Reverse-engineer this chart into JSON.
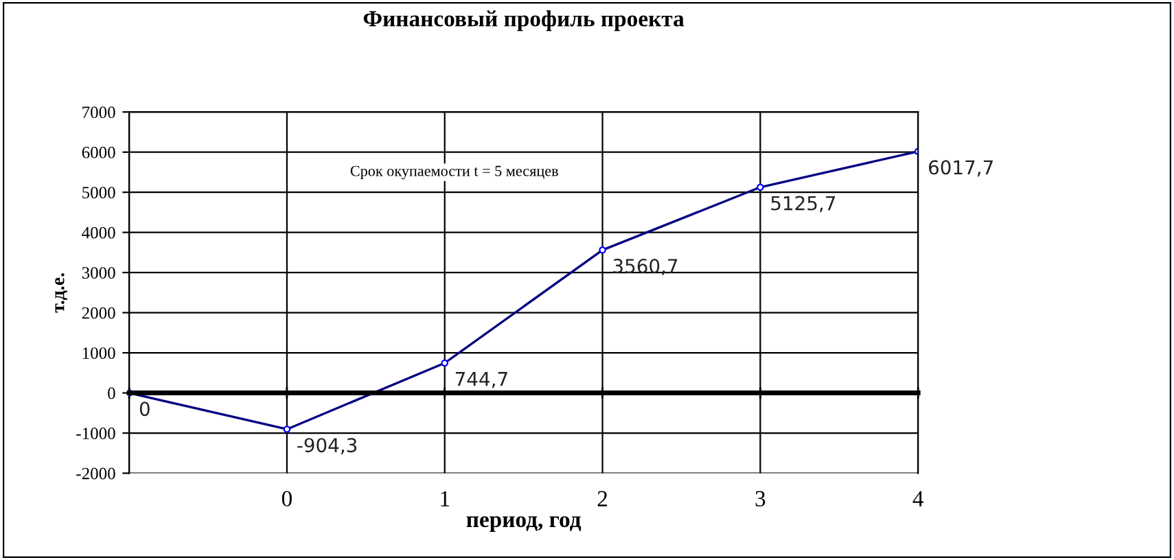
{
  "chart_data": {
    "type": "line",
    "title": "Финансовый профиль проекта",
    "xlabel": "период, год",
    "ylabel": "т.д.е.",
    "categories": [
      null,
      "0",
      "1",
      "2",
      "3",
      "4"
    ],
    "series": [
      {
        "color": "#000080",
        "values": [
          0,
          -904.3,
          744.7,
          3560.7,
          5125.7,
          6017.7
        ]
      }
    ],
    "ylim": [
      -2000,
      7000
    ],
    "yticks": [
      -2000,
      -1000,
      0,
      1000,
      2000,
      3000,
      4000,
      5000,
      6000,
      7000
    ],
    "value_labels": [
      "0",
      "-904,3",
      "744,7",
      "3560,7",
      "5125,7",
      "6017,7"
    ],
    "grid": true,
    "marker": "circle",
    "line_style": "solid",
    "annotations": [
      "Срок окупаемости t = 5 месяцев"
    ]
  }
}
